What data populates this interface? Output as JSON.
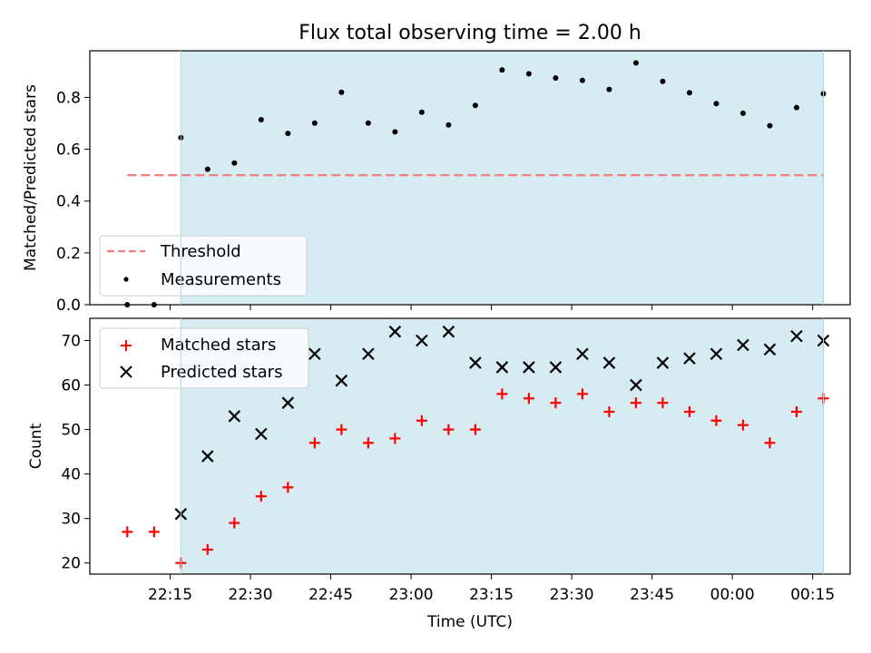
{
  "figure_title": "Flux total observing time = 2.00 h",
  "x_axis": {
    "label": "Time (UTC)",
    "range": [
      "22:00",
      "00:22"
    ],
    "tick_labels": [
      "22:15",
      "22:30",
      "22:45",
      "23:00",
      "23:15",
      "23:30",
      "23:45",
      "00:00",
      "00:15"
    ]
  },
  "shaded_interval": {
    "start": "22:17",
    "end": "00:17",
    "color": "#add8e6"
  },
  "chart_data": [
    {
      "type": "scatter",
      "ylabel": "Matched/Predicted stars",
      "ylim": [
        0,
        0.98
      ],
      "yticks": [
        0.0,
        0.2,
        0.4,
        0.6,
        0.8
      ],
      "ytick_labels": [
        "0.0",
        "0.2",
        "0.4",
        "0.6",
        "0.8"
      ],
      "grid": false,
      "legend_position": "lower-left",
      "x": [
        "22:07",
        "22:12",
        "22:17",
        "22:22",
        "22:27",
        "22:32",
        "22:37",
        "22:42",
        "22:47",
        "22:52",
        "22:57",
        "23:02",
        "23:07",
        "23:12",
        "23:17",
        "23:22",
        "23:27",
        "23:32",
        "23:37",
        "23:42",
        "23:47",
        "23:52",
        "23:57",
        "00:02",
        "00:07",
        "00:12",
        "00:17"
      ],
      "series": [
        {
          "name": "Measurements",
          "marker": "dot",
          "color": "#000000",
          "values": [
            0.0,
            0.0,
            0.645,
            0.523,
            0.547,
            0.714,
            0.661,
            0.701,
            0.82,
            0.701,
            0.667,
            0.743,
            0.694,
            0.769,
            0.906,
            0.891,
            0.875,
            0.866,
            0.831,
            0.933,
            0.862,
            0.818,
            0.776,
            0.739,
            0.691,
            0.761,
            0.814
          ]
        }
      ],
      "lines": [
        {
          "name": "Threshold",
          "style": "dashed",
          "color": "#f08080",
          "y": 0.5,
          "x_range": [
            "22:07",
            "00:17"
          ]
        }
      ]
    },
    {
      "type": "scatter",
      "ylabel": "Count",
      "ylim": [
        17.5,
        75
      ],
      "yticks": [
        20,
        30,
        40,
        50,
        60,
        70
      ],
      "ytick_labels": [
        "20",
        "30",
        "40",
        "50",
        "60",
        "70"
      ],
      "grid": false,
      "legend_position": "top-left",
      "series": [
        {
          "name": "Matched stars",
          "marker": "plus",
          "color": "#ff0000",
          "x": [
            "22:07",
            "22:12",
            "22:17",
            "22:22",
            "22:27",
            "22:32",
            "22:37",
            "22:42",
            "22:47",
            "22:52",
            "22:57",
            "23:02",
            "23:07",
            "23:12",
            "23:17",
            "23:22",
            "23:27",
            "23:32",
            "23:37",
            "23:42",
            "23:47",
            "23:52",
            "23:57",
            "00:02",
            "00:07",
            "00:12",
            "00:17"
          ],
          "values": [
            27,
            27,
            20,
            23,
            29,
            35,
            37,
            47,
            50,
            47,
            48,
            52,
            50,
            50,
            58,
            57,
            56,
            58,
            54,
            56,
            56,
            54,
            52,
            51,
            47,
            54,
            57
          ]
        },
        {
          "name": "Predicted stars",
          "marker": "x",
          "color": "#000000",
          "x": [
            "22:17",
            "22:22",
            "22:27",
            "22:32",
            "22:37",
            "22:42",
            "22:47",
            "22:52",
            "22:57",
            "23:02",
            "23:07",
            "23:12",
            "23:17",
            "23:22",
            "23:27",
            "23:32",
            "23:37",
            "23:42",
            "23:47",
            "23:52",
            "23:57",
            "00:02",
            "00:07",
            "00:12",
            "00:17"
          ],
          "values": [
            31,
            44,
            53,
            49,
            56,
            67,
            61,
            67,
            72,
            70,
            72,
            65,
            64,
            64,
            64,
            67,
            65,
            60,
            65,
            66,
            67,
            69,
            68,
            71,
            70
          ]
        }
      ]
    }
  ]
}
